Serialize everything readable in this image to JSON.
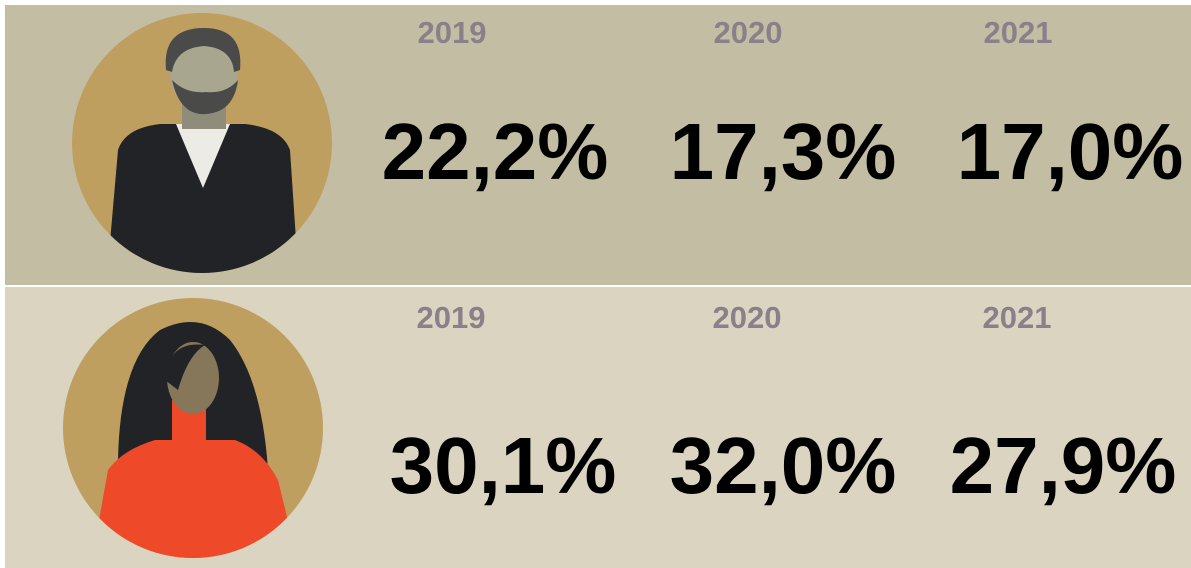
{
  "rows": [
    {
      "years": [
        "2019",
        "2020",
        "2021"
      ],
      "values": [
        "22,2%",
        "17,3%",
        "17,0%"
      ]
    },
    {
      "years": [
        "2019",
        "2020",
        "2021"
      ],
      "values": [
        "30,1%",
        "32,0%",
        "27,9%"
      ]
    }
  ]
}
